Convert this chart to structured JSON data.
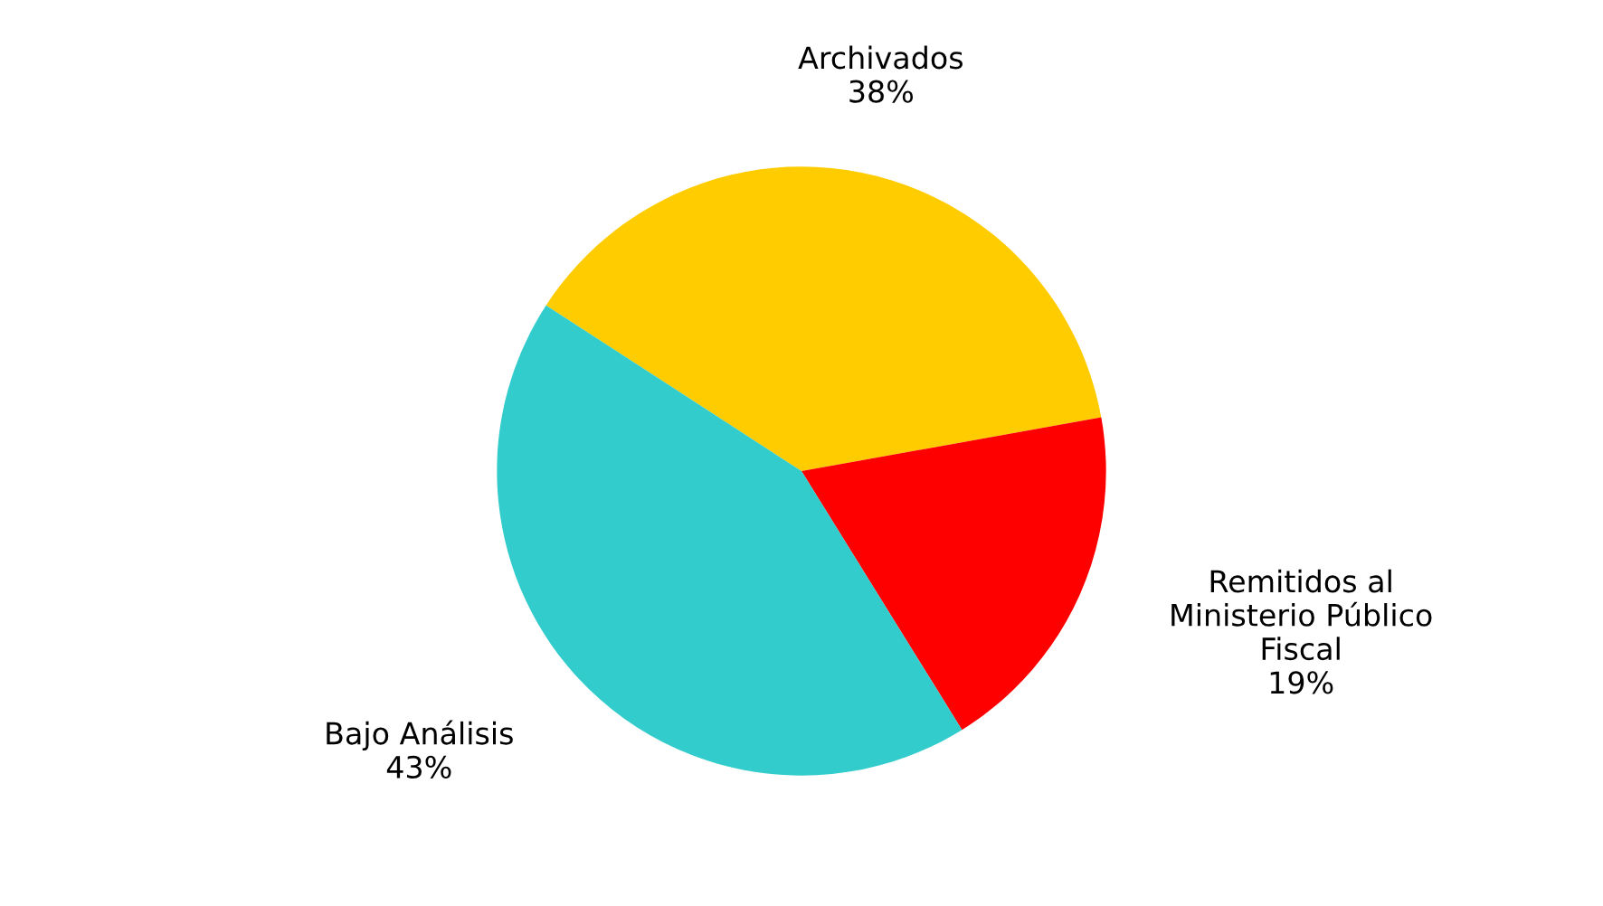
{
  "chart_data": {
    "type": "pie",
    "categories": [
      "Archivados",
      "Remitidos al\nMinisterio Público\nFiscal",
      "Bajo Análisis"
    ],
    "values": [
      38,
      19,
      43
    ],
    "value_labels": [
      "38%",
      "19%",
      "43%"
    ],
    "colors": [
      "#ffcc00",
      "#ff0000",
      "#33cccc"
    ],
    "legend": false
  }
}
